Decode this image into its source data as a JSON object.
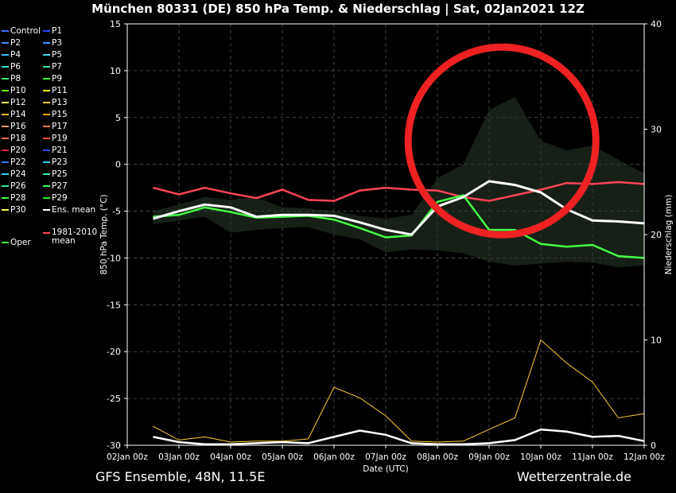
{
  "header": {
    "title": "München 80331 (DE)  850 hPa Temp. & Niederschlag | Sat, 02Jan2021 12Z"
  },
  "footer": {
    "model": "GFS Ensemble, 48N, 11.5E",
    "source": "Wetterzentrale.de"
  },
  "legend": {
    "items": [
      {
        "label": "Control",
        "color": "#3a6cff"
      },
      {
        "label": "P1",
        "color": "#2244ff"
      },
      {
        "label": "P2",
        "color": "#3c8cff"
      },
      {
        "label": "P3",
        "color": "#3399ff"
      },
      {
        "label": "P4",
        "color": "#33bbff"
      },
      {
        "label": "P5",
        "color": "#33ddee"
      },
      {
        "label": "P6",
        "color": "#33ddcc"
      },
      {
        "label": "P7",
        "color": "#33ee99"
      },
      {
        "label": "P8",
        "color": "#33ee66"
      },
      {
        "label": "P9",
        "color": "#33ff33"
      },
      {
        "label": "P10",
        "color": "#66ff00"
      },
      {
        "label": "P11",
        "color": "#ffff00"
      },
      {
        "label": "P12",
        "color": "#ffee66"
      },
      {
        "label": "P13",
        "color": "#ffcc33"
      },
      {
        "label": "P14",
        "color": "#ffbb33"
      },
      {
        "label": "P15",
        "color": "#ffaa00"
      },
      {
        "label": "P16",
        "color": "#ff9966"
      },
      {
        "label": "P17",
        "color": "#ff7733"
      },
      {
        "label": "P18",
        "color": "#ff6644"
      },
      {
        "label": "P19",
        "color": "#ff5533"
      },
      {
        "label": "P20",
        "color": "#dd2222"
      },
      {
        "label": "P21",
        "color": "#2255ff"
      },
      {
        "label": "P22",
        "color": "#3377ff"
      },
      {
        "label": "P23",
        "color": "#33ccff"
      },
      {
        "label": "P24",
        "color": "#33ccee"
      },
      {
        "label": "P25",
        "color": "#33eebb"
      },
      {
        "label": "P26",
        "color": "#33ee88"
      },
      {
        "label": "P27",
        "color": "#33ff55"
      },
      {
        "label": "P28",
        "color": "#33ff33"
      },
      {
        "label": "P29",
        "color": "#22ee22"
      },
      {
        "label": "P30",
        "color": "#ffff33"
      },
      {
        "label": "Ens. mean",
        "color": "#ffffff"
      },
      {
        "label": "Oper",
        "color": "#44ff44"
      },
      {
        "label": "1981-2010 mean",
        "color": "#ff4455"
      }
    ]
  },
  "chart_data": {
    "type": "line",
    "title": "München 80331 (DE)  850 hPa Temp. & Niederschlag | Sat, 02Jan2021 12Z",
    "xlabel": "Date (UTC)",
    "ylabel": "850 hPa Temp. (°C)",
    "ylabel_right": "Niederschlag (mm)",
    "x_ticks": [
      "02Jan 00z",
      "03Jan 00z",
      "04Jan 00z",
      "05Jan 00z",
      "06Jan 00z",
      "07Jan 00z",
      "08Jan 00z",
      "09Jan 00z",
      "10Jan 00z",
      "11Jan 00z",
      "12Jan 00z"
    ],
    "x_range_days": [
      0,
      10
    ],
    "ylim": [
      -30,
      15
    ],
    "y_ticks": [
      15,
      10,
      5,
      0,
      -5,
      -10,
      -15,
      -20,
      -25,
      -30
    ],
    "ylim_right": [
      0,
      40
    ],
    "y_ticks_right": [
      40,
      30,
      20,
      10,
      0
    ],
    "grid": true,
    "series_x_days": [
      0.5,
      1,
      1.5,
      2,
      2.5,
      3,
      3.5,
      4,
      4.5,
      5,
      5.5,
      6,
      6.5,
      7,
      7.5,
      8,
      8.5,
      9,
      9.5,
      10
    ],
    "temperature": {
      "climatology": {
        "name": "1981-2010 mean",
        "color": "#ff4455",
        "values": [
          -2.5,
          -3.2,
          -2.5,
          -3.1,
          -3.6,
          -2.7,
          -3.8,
          -3.9,
          -2.8,
          -2.5,
          -2.7,
          -2.8,
          -3.5,
          -3.9,
          -3.3,
          -2.7,
          -2.0,
          -2.1,
          -1.9,
          -2.1
        ]
      },
      "ens_mean": {
        "name": "Ens. mean",
        "color": "#ffffff",
        "values": [
          -5.8,
          -5.0,
          -4.3,
          -4.6,
          -5.6,
          -5.4,
          -5.4,
          -5.5,
          -6.2,
          -7.0,
          -7.5,
          -4.5,
          -3.5,
          -1.8,
          -2.2,
          -3.0,
          -4.8,
          -6.0,
          -6.1,
          -6.3
        ]
      },
      "oper": {
        "name": "Oper",
        "color": "#44ff44",
        "values": [
          -5.6,
          -5.4,
          -4.6,
          -5.1,
          -5.7,
          -5.6,
          -5.5,
          -5.9,
          -6.8,
          -7.8,
          -7.6,
          -4.0,
          -3.3,
          -7.0,
          -7.0,
          -8.5,
          -8.8,
          -8.6,
          -9.8,
          -10.0
        ]
      },
      "ensemble_spread": {
        "color": "#888888",
        "min": [
          -6.4,
          -6.0,
          -5.6,
          -7.3,
          -7.0,
          -6.8,
          -6.7,
          -7.5,
          -8.0,
          -9.4,
          -9.1,
          -9.2,
          -9.5,
          -10.4,
          -10.8,
          -10.6,
          -10.4,
          -10.5,
          -11.0,
          -10.8
        ],
        "max": [
          -5.0,
          -4.3,
          -3.5,
          -3.8,
          -3.5,
          -4.6,
          -4.7,
          -5.0,
          -5.5,
          -5.8,
          -5.4,
          -1.5,
          0.0,
          5.8,
          7.2,
          2.5,
          1.5,
          2.0,
          0.5,
          -1.0
        ]
      }
    },
    "precipitation": {
      "ens_mean": {
        "name": "Ens. mean",
        "color": "#ffffff",
        "values": [
          0.8,
          0.3,
          0.1,
          0.1,
          0.2,
          0.3,
          0.2,
          0.8,
          1.4,
          1.0,
          0.2,
          0.1,
          0.1,
          0.2,
          0.5,
          1.5,
          1.3,
          0.8,
          0.9,
          0.4
        ]
      },
      "max": {
        "name": "max",
        "color": "#ffcc33",
        "values": [
          1.8,
          0.5,
          0.8,
          0.3,
          0.4,
          0.4,
          0.6,
          5.5,
          4.5,
          2.8,
          0.4,
          0.3,
          0.4,
          1.5,
          2.6,
          10.0,
          7.8,
          6.0,
          2.6,
          3.0
        ]
      }
    }
  }
}
